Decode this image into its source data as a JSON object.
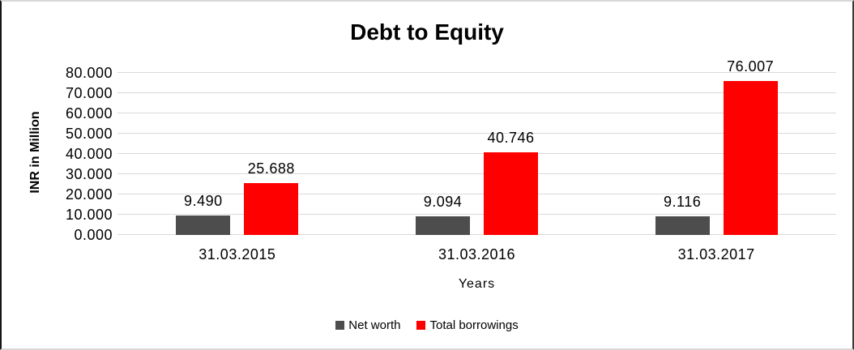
{
  "chart_data": {
    "type": "bar",
    "title": "Debt to Equity",
    "xlabel": "Years",
    "ylabel": "INR in Million",
    "categories": [
      "31.03.2015",
      "31.03.2016",
      "31.03.2017"
    ],
    "series": [
      {
        "name": "Net worth",
        "color": "#4D4D4D",
        "values": [
          9490,
          9094,
          9116
        ],
        "value_labels": [
          "9.490",
          "9.094",
          "9.116"
        ]
      },
      {
        "name": "Total borrowings",
        "color": "#FF0000",
        "values": [
          25688,
          40746,
          76007
        ],
        "value_labels": [
          "25.688",
          "40.746",
          "76.007"
        ]
      }
    ],
    "ylim": [
      0,
      80000
    ],
    "ytick_labels": [
      "0.000",
      "10.000",
      "20.000",
      "30.000",
      "40.000",
      "50.000",
      "60.000",
      "70.000",
      "80.000"
    ],
    "grid": true,
    "grid_color": "#D9D9D9",
    "legend_position": "bottom",
    "axis_text_color": "#000000"
  }
}
